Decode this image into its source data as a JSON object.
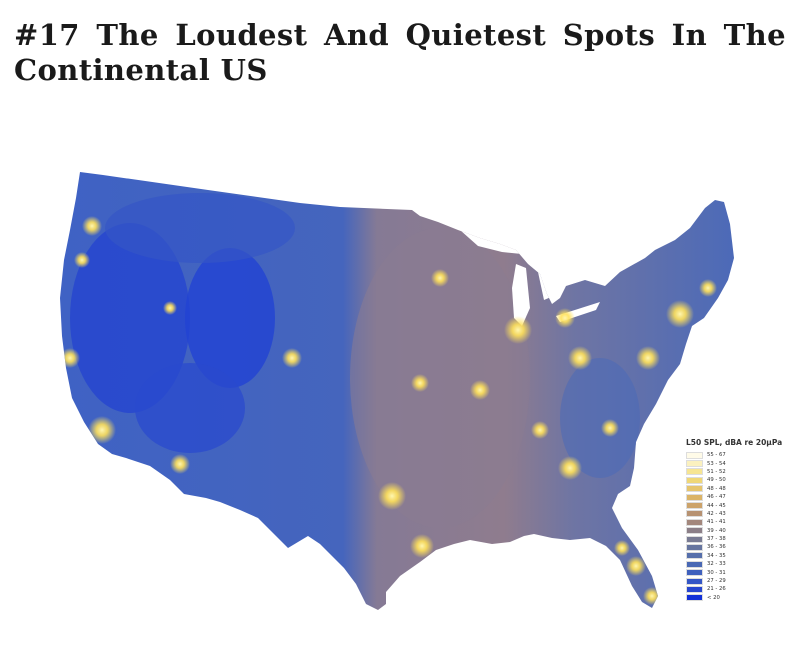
{
  "article": {
    "title": "#17 The Loudest And Quietest Spots In The Continental US"
  },
  "map": {
    "subject": "continental-us-noise",
    "legend": {
      "title": "L50 SPL, dBA re 20μPa",
      "items": [
        {
          "label": "55 - 67",
          "color": "#fffbe8"
        },
        {
          "label": "53 - 54",
          "color": "#fbf1bf"
        },
        {
          "label": "51 - 52",
          "color": "#f6e593"
        },
        {
          "label": "49 - 50",
          "color": "#efd777"
        },
        {
          "label": "48 - 48",
          "color": "#e6c56d"
        },
        {
          "label": "46 - 47",
          "color": "#dbb467"
        },
        {
          "label": "44 - 45",
          "color": "#cca36a"
        },
        {
          "label": "42 - 43",
          "color": "#b79272"
        },
        {
          "label": "41 - 41",
          "color": "#a3877c"
        },
        {
          "label": "39 - 40",
          "color": "#8c7f88"
        },
        {
          "label": "37 - 38",
          "color": "#797b93"
        },
        {
          "label": "36 - 36",
          "color": "#66759f"
        },
        {
          "label": "34 - 35",
          "color": "#566fab"
        },
        {
          "label": "32 - 33",
          "color": "#4968b4"
        },
        {
          "label": "30 - 31",
          "color": "#3f60bd"
        },
        {
          "label": "27 - 29",
          "color": "#3456c6"
        },
        {
          "label": "21 - 26",
          "color": "#2746cf"
        },
        {
          "label": "< 20",
          "color": "#1230d8"
        }
      ]
    },
    "colors": {
      "background": "#ffffff",
      "quiet_west": "#2a48cc",
      "rural_blue": "#3f62c4",
      "east_blue": "#4b69b8",
      "plains_mauve": "#8a7c92",
      "urban_yellow": "#ffe15a"
    }
  }
}
